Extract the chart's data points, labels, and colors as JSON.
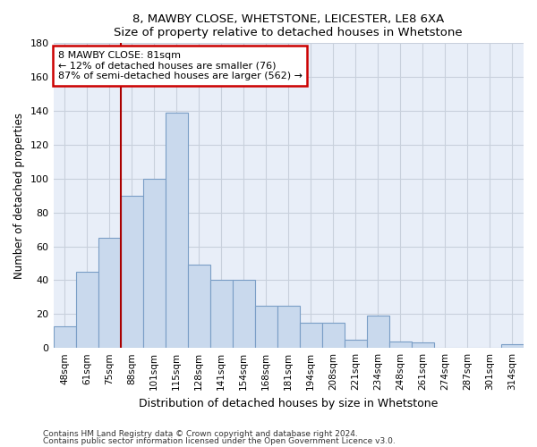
{
  "title1": "8, MAWBY CLOSE, WHETSTONE, LEICESTER, LE8 6XA",
  "title2": "Size of property relative to detached houses in Whetstone",
  "xlabel": "Distribution of detached houses by size in Whetstone",
  "ylabel": "Number of detached properties",
  "bar_labels": [
    "48sqm",
    "61sqm",
    "75sqm",
    "88sqm",
    "101sqm",
    "115sqm",
    "128sqm",
    "141sqm",
    "154sqm",
    "168sqm",
    "181sqm",
    "194sqm",
    "208sqm",
    "221sqm",
    "234sqm",
    "248sqm",
    "261sqm",
    "274sqm",
    "287sqm",
    "301sqm",
    "314sqm"
  ],
  "bar_values": [
    13,
    45,
    65,
    90,
    100,
    139,
    49,
    40,
    40,
    25,
    25,
    15,
    15,
    5,
    19,
    4,
    3,
    0,
    0,
    0,
    2
  ],
  "bar_color": "#c9d9ed",
  "bar_edge_color": "#7a9ec6",
  "vline_color": "#aa0000",
  "annotation_line1": "8 MAWBY CLOSE: 81sqm",
  "annotation_line2": "← 12% of detached houses are smaller (76)",
  "annotation_line3": "87% of semi-detached houses are larger (562) →",
  "annotation_box_color": "#cc0000",
  "ylim": [
    0,
    180
  ],
  "yticks": [
    0,
    20,
    40,
    60,
    80,
    100,
    120,
    140,
    160,
    180
  ],
  "footnote1": "Contains HM Land Registry data © Crown copyright and database right 2024.",
  "footnote2": "Contains public sector information licensed under the Open Government Licence v3.0.",
  "grid_color": "#c8d0dc",
  "bg_color": "#e8eef8"
}
